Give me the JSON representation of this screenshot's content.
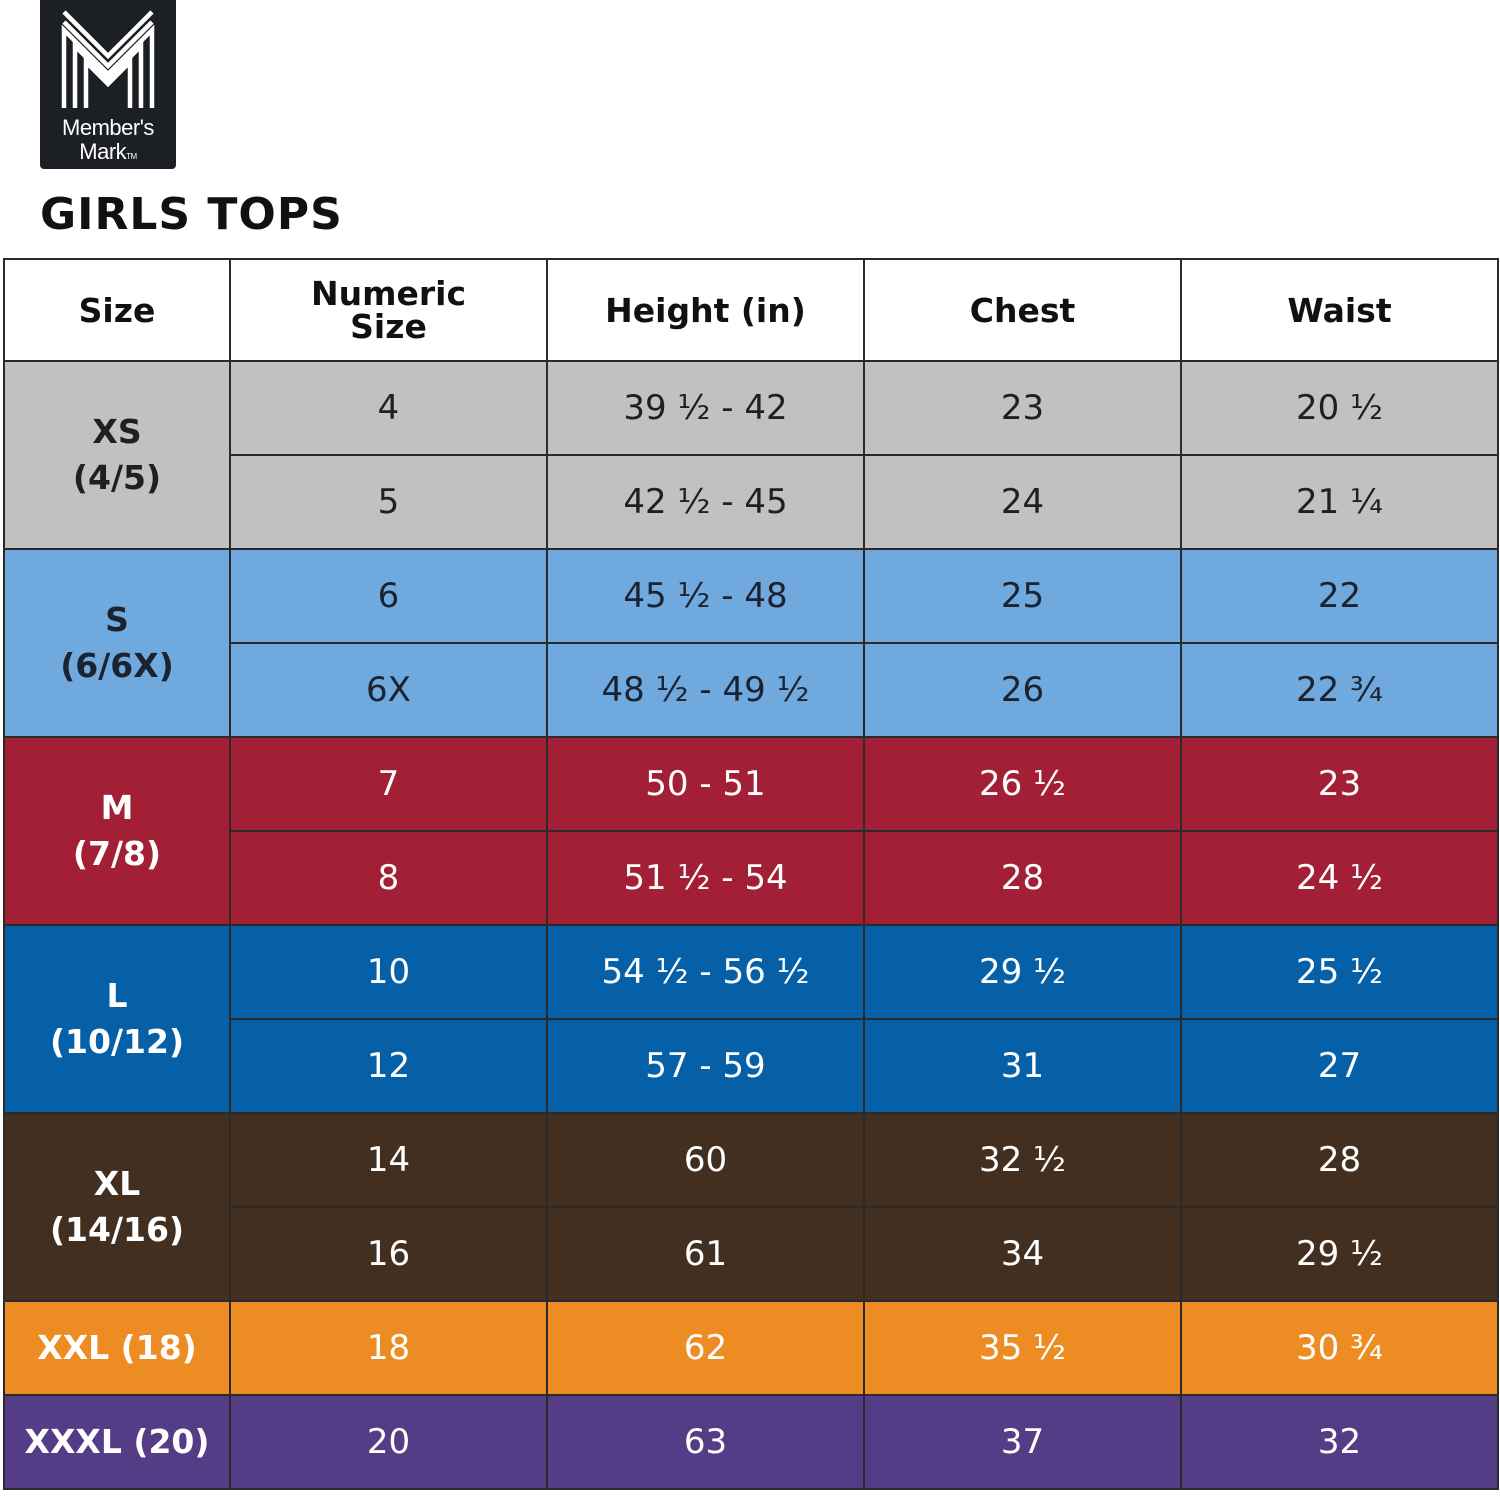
{
  "brand": {
    "line1": "Member's",
    "line2": "Mark",
    "tm": "TM"
  },
  "title": "GIRLS TOPS",
  "headers": {
    "size": "Size",
    "numeric_line1": "Numeric",
    "numeric_line2": "Size",
    "height": "Height (in)",
    "chest": "Chest",
    "waist": "Waist"
  },
  "colors": {
    "xs": "#c1c1c1",
    "s": "#6fa9dd",
    "m": "#a31f36",
    "l": "#0560a8",
    "xl": "#432f1f",
    "xxl": "#ed8c22",
    "xxxl": "#553c86"
  },
  "groups": [
    {
      "size_line1": "XS",
      "size_line2": "(4/5)",
      "rows": [
        {
          "numeric": "4",
          "height": "39 ½ - 42",
          "chest": "23",
          "waist": "20 ½"
        },
        {
          "numeric": "5",
          "height": "42 ½ - 45",
          "chest": "24",
          "waist": "21 ¼"
        }
      ]
    },
    {
      "size_line1": "S",
      "size_line2": "(6/6X)",
      "rows": [
        {
          "numeric": "6",
          "height": "45 ½ - 48",
          "chest": "25",
          "waist": "22"
        },
        {
          "numeric": "6X",
          "height": "48 ½ - 49 ½",
          "chest": "26",
          "waist": "22 ¾"
        }
      ]
    },
    {
      "size_line1": "M",
      "size_line2": "(7/8)",
      "rows": [
        {
          "numeric": "7",
          "height": "50 - 51",
          "chest": "26 ½",
          "waist": "23"
        },
        {
          "numeric": "8",
          "height": "51 ½ - 54",
          "chest": "28",
          "waist": "24 ½"
        }
      ]
    },
    {
      "size_line1": "L",
      "size_line2": "(10/12)",
      "rows": [
        {
          "numeric": "10",
          "height": "54 ½ - 56 ½",
          "chest": "29 ½",
          "waist": "25 ½"
        },
        {
          "numeric": "12",
          "height": "57 - 59",
          "chest": "31",
          "waist": "27"
        }
      ]
    },
    {
      "size_line1": "XL",
      "size_line2": "(14/16)",
      "rows": [
        {
          "numeric": "14",
          "height": "60",
          "chest": "32 ½",
          "waist": "28"
        },
        {
          "numeric": "16",
          "height": "61",
          "chest": "34",
          "waist": "29 ½"
        }
      ]
    },
    {
      "size_line1": "XXL (18)",
      "size_line2": "",
      "rows": [
        {
          "numeric": "18",
          "height": "62",
          "chest": "35 ½",
          "waist": "30 ¾"
        }
      ]
    },
    {
      "size_line1": "XXXL (20)",
      "size_line2": "",
      "rows": [
        {
          "numeric": "20",
          "height": "63",
          "chest": "37",
          "waist": "32"
        }
      ]
    }
  ]
}
